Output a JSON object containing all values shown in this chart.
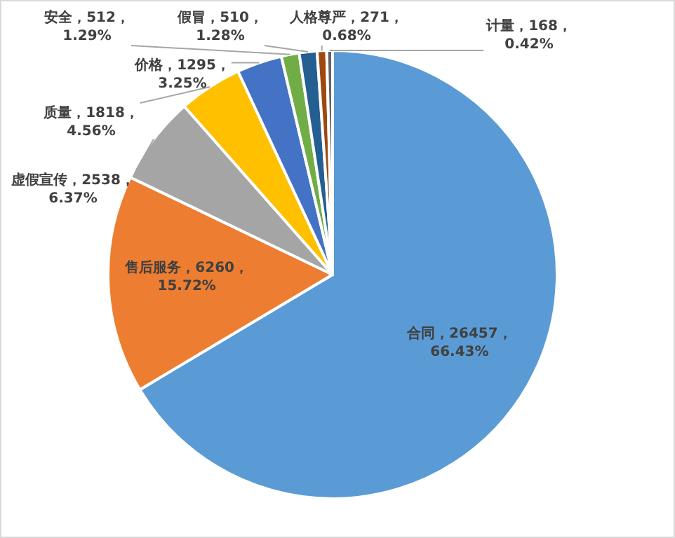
{
  "chart_data": {
    "type": "pie",
    "categories": [
      "合同",
      "售后服务",
      "虚假宣传",
      "质量",
      "价格",
      "安全",
      "假冒",
      "人格尊严",
      "计量"
    ],
    "values": [
      26457,
      6260,
      2538,
      1818,
      1295,
      512,
      510,
      271,
      168
    ],
    "colors": [
      "#5b9bd5",
      "#ed7d31",
      "#a5a5a5",
      "#ffc000",
      "#4472c4",
      "#70ad47",
      "#255e91",
      "#9e480e",
      "#636363"
    ],
    "value_labels": [
      "26457，\n66.43%",
      "6260，\n15.72%",
      "2538，\n6.37%",
      "1818，\n4.56%",
      "1295，\n3.25%",
      "512，\n1.29%",
      "510，\n1.28%",
      "271，\n0.68%",
      "168，\n0.42%"
    ]
  }
}
